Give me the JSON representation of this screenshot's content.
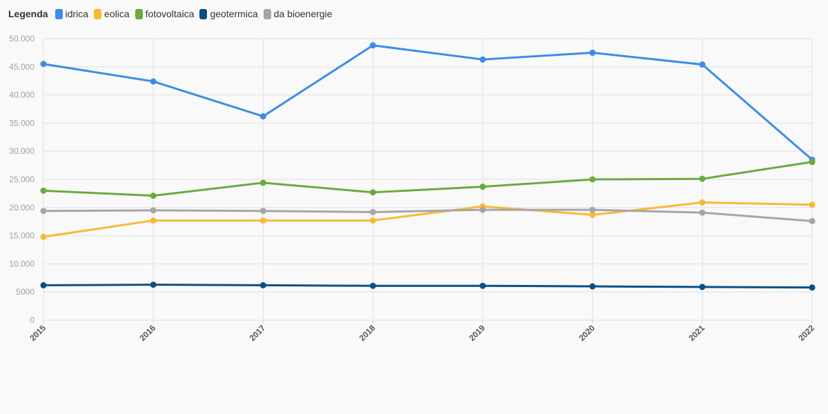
{
  "chart_data": {
    "type": "line",
    "legend": {
      "title": "Legenda",
      "placement": "top-left"
    },
    "x": [
      "2015",
      "2016",
      "2017",
      "2018",
      "2019",
      "2020",
      "2021",
      "2022"
    ],
    "y_ticks": [
      {
        "value": 0,
        "label": "0"
      },
      {
        "value": 5000,
        "label": "5000"
      },
      {
        "value": 10000,
        "label": "10.000"
      },
      {
        "value": 15000,
        "label": "15.000"
      },
      {
        "value": 20000,
        "label": "20.000"
      },
      {
        "value": 25000,
        "label": "25.000"
      },
      {
        "value": 30000,
        "label": "30.000"
      },
      {
        "value": 35000,
        "label": "35.000"
      },
      {
        "value": 40000,
        "label": "40.000"
      },
      {
        "value": 45000,
        "label": "45.000"
      },
      {
        "value": 50000,
        "label": "50.000"
      }
    ],
    "ylim": [
      0,
      50000
    ],
    "grid": true,
    "series": [
      {
        "name": "idrica",
        "color": "#3a8ee6",
        "values": [
          45500,
          42400,
          36200,
          48800,
          46300,
          47500,
          45400,
          28500
        ]
      },
      {
        "name": "eolica",
        "color": "#f9b935",
        "values": [
          14800,
          17700,
          17700,
          17700,
          20200,
          18700,
          20900,
          20500
        ]
      },
      {
        "name": "fotovoltaica",
        "color": "#6aab3f",
        "values": [
          23000,
          22100,
          24400,
          22700,
          23700,
          25000,
          25100,
          28100
        ]
      },
      {
        "name": "geotermica",
        "color": "#0b4f86",
        "values": [
          6200,
          6300,
          6200,
          6100,
          6100,
          6000,
          5900,
          5800
        ]
      },
      {
        "name": "da bioenergie",
        "color": "#a6a6a6",
        "values": [
          19400,
          19500,
          19400,
          19200,
          19600,
          19600,
          19100,
          17600
        ]
      }
    ]
  }
}
